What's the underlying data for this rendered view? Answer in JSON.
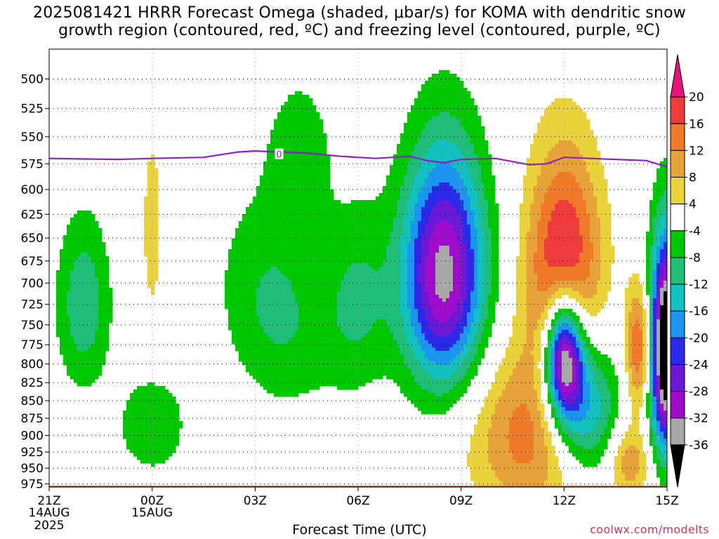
{
  "title": {
    "line1": "2025081421 HRRR Forecast Omega (shaded, μbar/s) for KOMA with dendritic snow",
    "line2": "growth region (contoured, red, ºC) and freezing level (contoured, purple, ºC)"
  },
  "credit": "coolwx.com/modelts",
  "chart_data": {
    "type": "heatmap",
    "xlabel": "Forecast Time (UTC)",
    "x_ticks": [
      {
        "label": "21Z",
        "sub1": "14AUG",
        "sub2": "2025",
        "hour": 0
      },
      {
        "label": "00Z",
        "sub1": "15AUG",
        "sub2": "",
        "hour": 3
      },
      {
        "label": "03Z",
        "sub1": "",
        "sub2": "",
        "hour": 6
      },
      {
        "label": "06Z",
        "sub1": "",
        "sub2": "",
        "hour": 9
      },
      {
        "label": "09Z",
        "sub1": "",
        "sub2": "",
        "hour": 12
      },
      {
        "label": "12Z",
        "sub1": "",
        "sub2": "",
        "hour": 15
      },
      {
        "label": "15Z",
        "sub1": "",
        "sub2": "",
        "hour": 18
      }
    ],
    "xlim_hours": [
      0,
      18
    ],
    "y_ticks": [
      500,
      525,
      550,
      575,
      600,
      625,
      650,
      675,
      700,
      725,
      750,
      775,
      800,
      825,
      850,
      875,
      900,
      925,
      950,
      975
    ],
    "ylim_mb": [
      476,
      980
    ],
    "y_scale": "log-pressure",
    "grid": "dotted",
    "colorbar": {
      "placement": "right",
      "labels": [
        "20",
        "16",
        "12",
        "8",
        "4",
        "-4",
        "-8",
        "-12",
        "-16",
        "-20",
        "-24",
        "-28",
        "-32",
        "-36"
      ],
      "bands": [
        {
          "lo": 20,
          "hi": 99,
          "color": "#e8137a"
        },
        {
          "lo": 16,
          "hi": 20,
          "color": "#ef3b3b"
        },
        {
          "lo": 12,
          "hi": 16,
          "color": "#ef7a28"
        },
        {
          "lo": 8,
          "hi": 12,
          "color": "#e8a23a"
        },
        {
          "lo": 4,
          "hi": 8,
          "color": "#ead33a"
        },
        {
          "lo": -4,
          "hi": 4,
          "color": "#ffffff"
        },
        {
          "lo": -8,
          "hi": -4,
          "color": "#00c800"
        },
        {
          "lo": -12,
          "hi": -8,
          "color": "#1ebe78"
        },
        {
          "lo": -16,
          "hi": -12,
          "color": "#13c0c0"
        },
        {
          "lo": -20,
          "hi": -16,
          "color": "#1a96f0"
        },
        {
          "lo": -24,
          "hi": -20,
          "color": "#2a2ae8"
        },
        {
          "lo": -28,
          "hi": -24,
          "color": "#6c18d8"
        },
        {
          "lo": -32,
          "hi": -28,
          "color": "#a00ccc"
        },
        {
          "lo": -36,
          "hi": -32,
          "color": "#a8a8a8"
        },
        {
          "lo": -99,
          "hi": -36,
          "color": "#000000"
        }
      ]
    },
    "freezing_level": {
      "label": "0",
      "color": "#8a1fc8",
      "points": [
        [
          0,
          570
        ],
        [
          2,
          571
        ],
        [
          3,
          570
        ],
        [
          4.5,
          569
        ],
        [
          5.5,
          564
        ],
        [
          6,
          563
        ],
        [
          7.5,
          565
        ],
        [
          8.5,
          568
        ],
        [
          9.5,
          570
        ],
        [
          10.5,
          568
        ],
        [
          11,
          572
        ],
        [
          11.5,
          574
        ],
        [
          12,
          571
        ],
        [
          13,
          570
        ],
        [
          14,
          576
        ],
        [
          14.5,
          575
        ],
        [
          15,
          569
        ],
        [
          16.5,
          571
        ],
        [
          17.4,
          572
        ],
        [
          18,
          578
        ]
      ]
    },
    "omega_features": [
      {
        "hour": 1.0,
        "p": 725,
        "hw": 0.8,
        "hp": 1100,
        "value": -11,
        "angle": 0
      },
      {
        "hour": 3.0,
        "p": 885,
        "hw": 1.0,
        "hp": 520,
        "value": -8,
        "angle": 0
      },
      {
        "hour": 3.0,
        "p": 640,
        "hw": 0.28,
        "hp": 1000,
        "value": 7,
        "angle": 0
      },
      {
        "hour": 6.6,
        "p": 730,
        "hw": 1.6,
        "hp": 1600,
        "value": -9,
        "angle": -0.25
      },
      {
        "hour": 9.0,
        "p": 720,
        "hw": 1.0,
        "hp": 1300,
        "value": -8,
        "angle": 0
      },
      {
        "hour": 7.3,
        "p": 560,
        "hw": 1.0,
        "hp": 500,
        "value": -6,
        "angle": 0
      },
      {
        "hour": 11.5,
        "p": 690,
        "hw": 1.2,
        "hp": 1800,
        "value": -34,
        "angle": 0
      },
      {
        "hour": 14.0,
        "p": 900,
        "hw": 1.8,
        "hp": 1600,
        "value": 14,
        "angle": 0
      },
      {
        "hour": 15.0,
        "p": 680,
        "hw": 1.1,
        "hp": 1600,
        "value": 22,
        "angle": 0
      },
      {
        "hour": 15.0,
        "p": 790,
        "hw": 0.55,
        "hp": 620,
        "value": -40,
        "angle": 0
      },
      {
        "hour": 15.6,
        "p": 860,
        "hw": 1.0,
        "hp": 1000,
        "value": -20,
        "angle": 0
      },
      {
        "hour": 17.2,
        "p": 780,
        "hw": 0.4,
        "hp": 650,
        "value": 18,
        "angle": 0
      },
      {
        "hour": 16.9,
        "p": 940,
        "hw": 0.6,
        "hp": 320,
        "value": 11,
        "angle": 0
      },
      {
        "hour": 18.0,
        "p": 780,
        "hw": 0.5,
        "hp": 1800,
        "value": -48,
        "angle": 0
      }
    ],
    "ground_color": "#9a5030"
  }
}
